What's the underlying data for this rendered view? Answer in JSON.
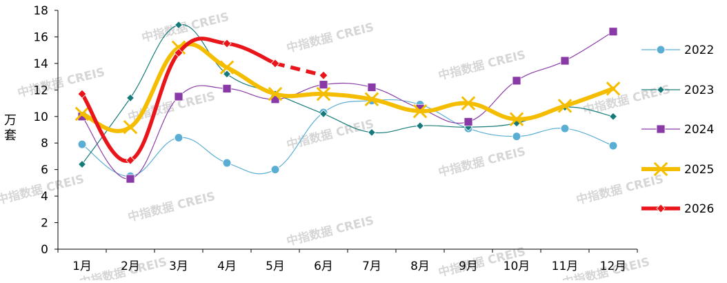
{
  "watermark": "中指数据 CREIS",
  "chart_data": {
    "type": "line",
    "title": "",
    "xlabel": "",
    "ylabel": "万套",
    "ylim": [
      0,
      18
    ],
    "yticks": [
      "0",
      "2",
      "4",
      "6",
      "8",
      "10",
      "12",
      "14",
      "16",
      "18"
    ],
    "categories": [
      "1月",
      "2月",
      "3月",
      "4月",
      "5月",
      "6月",
      "7月",
      "8月",
      "9月",
      "10月",
      "11月",
      "12月"
    ],
    "legend_position": "right",
    "series": [
      {
        "name": "2022",
        "color": "#5aaed3",
        "marker": "circle",
        "values": [
          7.9,
          5.5,
          8.4,
          6.5,
          6.0,
          10.3,
          11.2,
          10.9,
          9.1,
          8.5,
          9.1,
          7.8
        ]
      },
      {
        "name": "2023",
        "color": "#177a7a",
        "marker": "diamond",
        "values": [
          6.4,
          11.4,
          16.9,
          13.2,
          11.7,
          10.2,
          8.8,
          9.3,
          9.2,
          9.5,
          10.7,
          10.0
        ]
      },
      {
        "name": "2024",
        "color": "#8a3aa6",
        "marker": "square",
        "values": [
          10.0,
          5.3,
          11.5,
          12.1,
          11.3,
          12.4,
          12.2,
          10.6,
          9.6,
          12.7,
          14.2,
          16.4
        ]
      },
      {
        "name": "2025",
        "color": "#f5bd00",
        "marker": "x",
        "values": [
          10.2,
          9.2,
          15.2,
          13.7,
          11.7,
          11.7,
          11.3,
          10.4,
          11.0,
          9.8,
          10.8,
          12.1
        ]
      },
      {
        "name": "2026",
        "color": "#e8161b",
        "marker": "diamond",
        "values": [
          11.7,
          6.7,
          14.8,
          15.5,
          14.0,
          13.1,
          null,
          null,
          null,
          null,
          null,
          null
        ],
        "dashed_from_index": 4
      }
    ]
  }
}
